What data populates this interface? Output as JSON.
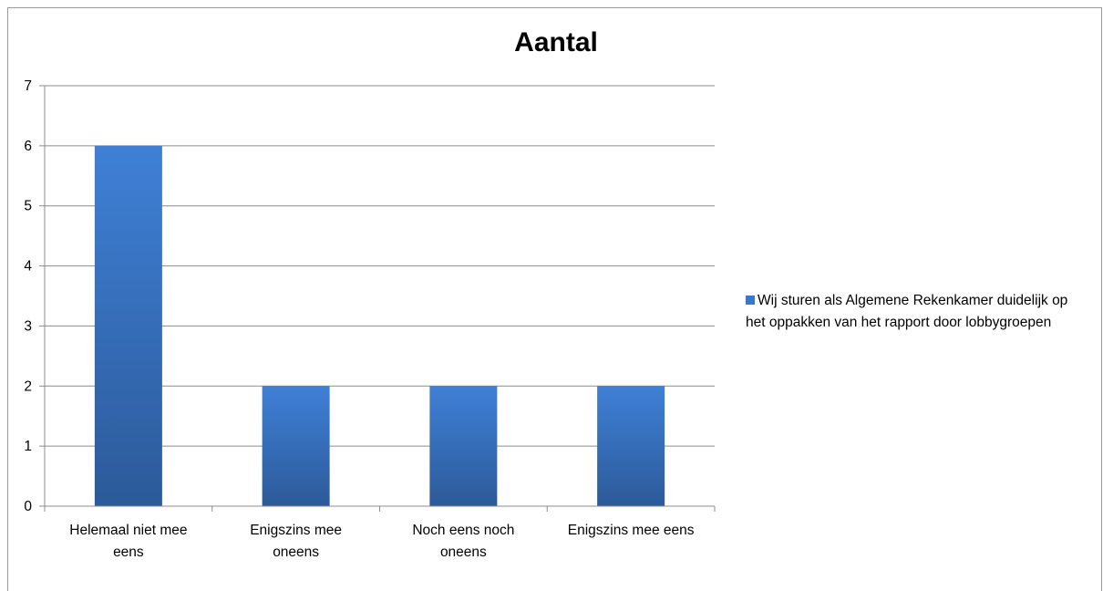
{
  "chart_data": {
    "type": "bar",
    "title": "Aantal",
    "xlabel": "",
    "ylabel": "",
    "categories": [
      [
        "Helemaal niet mee",
        "eens"
      ],
      [
        "Enigszins mee",
        "oneens"
      ],
      [
        "Noch eens noch",
        "oneens"
      ],
      [
        "Enigszins mee eens"
      ]
    ],
    "series": [
      {
        "name": "Wij sturen als Algemene Rekenkamer duidelijk op het oppakken van het rapport door lobbygroepen",
        "values": [
          6,
          2,
          2,
          2
        ]
      }
    ],
    "ylim": [
      0,
      7
    ],
    "yticks": [
      "0",
      "1",
      "2",
      "3",
      "4",
      "5",
      "6",
      "7"
    ],
    "grid": true,
    "legend_position": "right",
    "colors": {
      "bar_top": "#3f80d6",
      "bar_bottom": "#2c5a99",
      "grid": "#8c8c8c",
      "axis": "#8c8c8c",
      "text": "#000000"
    }
  }
}
